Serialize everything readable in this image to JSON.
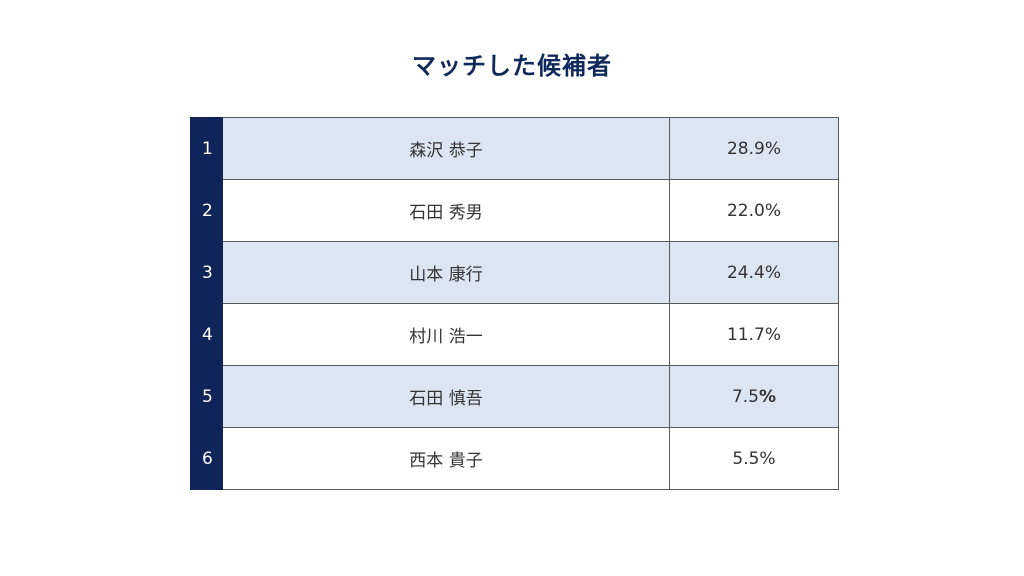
{
  "slide": {
    "title": "マッチした候補者"
  },
  "candidates": [
    {
      "rank": "1",
      "name": "森沢 恭子",
      "percent": "28.9%"
    },
    {
      "rank": "2",
      "name": "石田 秀男",
      "percent": "22.0%"
    },
    {
      "rank": "3",
      "name": "山本 康行",
      "percent": "24.4%"
    },
    {
      "rank": "4",
      "name": "村川 浩一",
      "percent": "11.7%"
    },
    {
      "rank": "5",
      "name": "石田 慎吾",
      "percent_value": "7.5",
      "percent_sign": "%"
    },
    {
      "rank": "6",
      "name": "西本 貴子",
      "percent": "5.5%"
    }
  ],
  "colors": {
    "title": "#0f2a5a",
    "rank_column": "#0f2459",
    "shaded_row": "#dce6f2",
    "plain_row": "#ffffff",
    "border": "#5a5a5a"
  }
}
